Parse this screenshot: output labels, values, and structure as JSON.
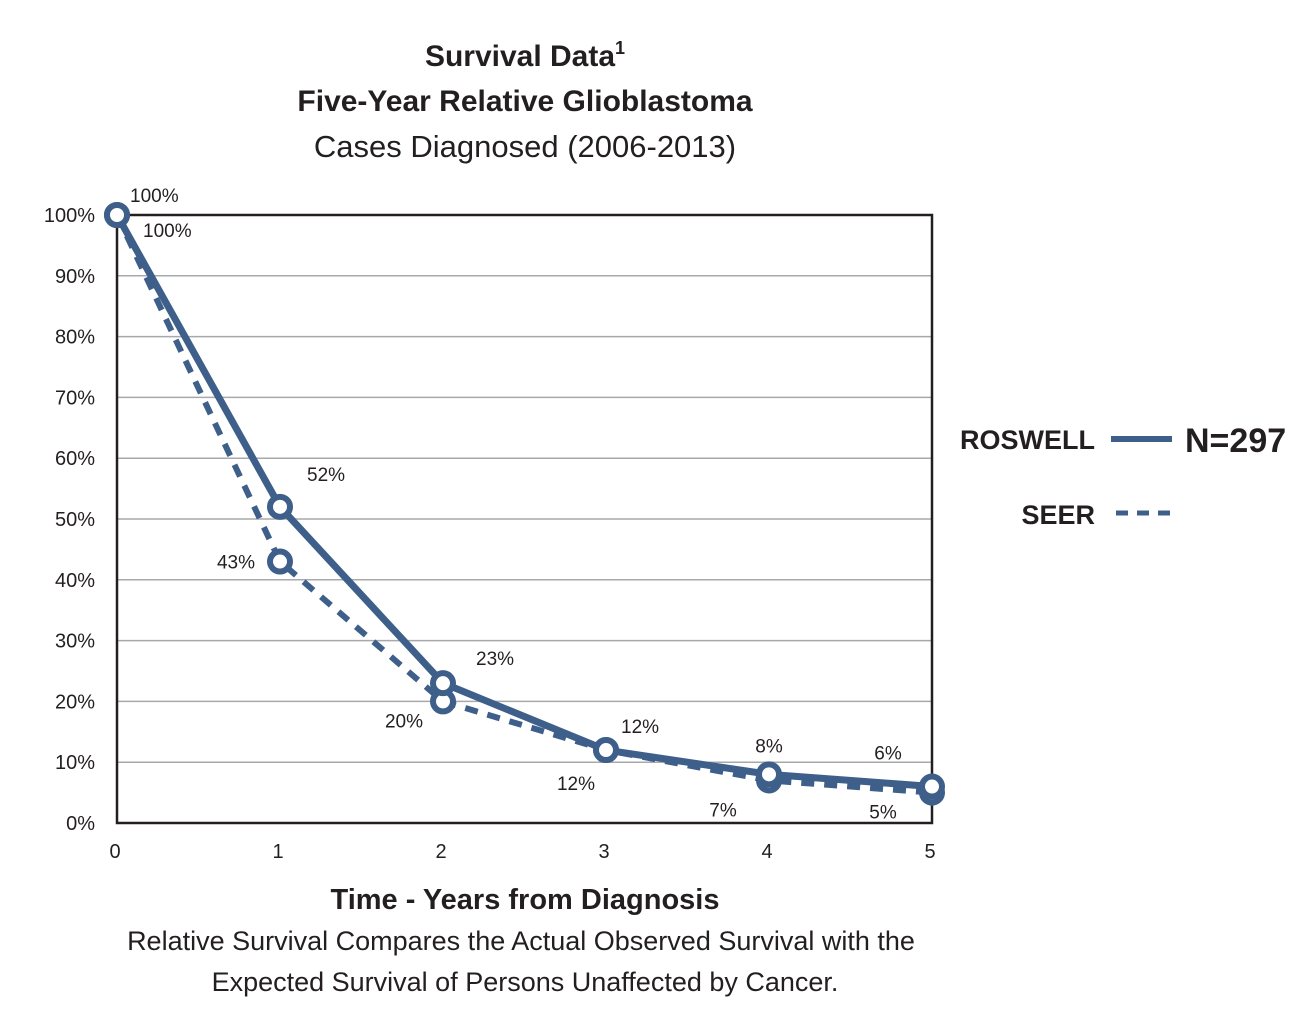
{
  "chart_data": {
    "type": "line",
    "title": "Survival Data",
    "title_superscript": "1",
    "subtitle": "Five-Year Relative Glioblastoma",
    "subtitle2": "Cases Diagnosed (2006-2013)",
    "xlabel": "Time - Years from Diagnosis",
    "caption_lines": [
      "Relative Survival Compares the Actual Observed Survival with the",
      "Expected Survival of Persons Unaffected by Cancer."
    ],
    "x": [
      0,
      1,
      2,
      3,
      4,
      5
    ],
    "x_tick_labels": [
      "0",
      "1",
      "2",
      "3",
      "4",
      "5"
    ],
    "y_tick_labels": [
      "0%",
      "10%",
      "20%",
      "30%",
      "40%",
      "50%",
      "60%",
      "70%",
      "80%",
      "90%",
      "100%"
    ],
    "xlim": [
      0,
      5
    ],
    "ylim": [
      0,
      100
    ],
    "grid": true,
    "legend_position": "right",
    "series": [
      {
        "name": "ROSWELL",
        "style": "solid",
        "color": "#3e5f8a",
        "values": [
          100,
          52,
          23,
          12,
          8,
          6
        ],
        "labels": [
          "100%",
          "52%",
          "23%",
          "12%",
          "8%",
          "6%"
        ],
        "legend_note": "N=297"
      },
      {
        "name": "SEER",
        "style": "dashed",
        "color": "#3e5f8a",
        "values": [
          100,
          43,
          20,
          12,
          7,
          5
        ],
        "labels": [
          "100%",
          "43%",
          "20%",
          "12%",
          "7%",
          "5%"
        ]
      }
    ]
  }
}
